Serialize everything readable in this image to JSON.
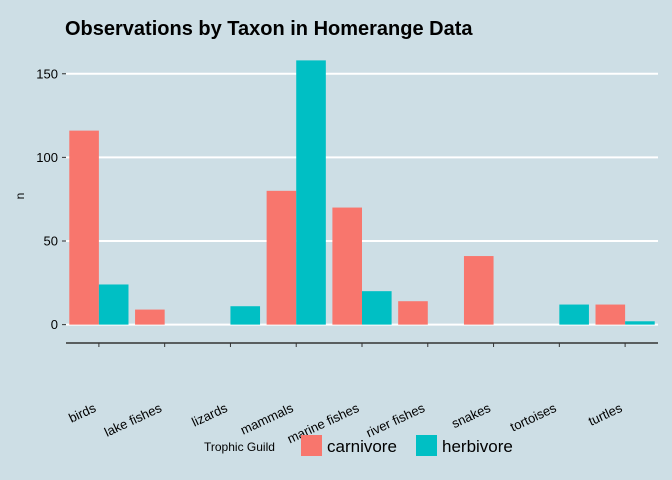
{
  "chart_data": {
    "type": "bar",
    "title": "Observations by Taxon in Homerange Data",
    "xlabel": "Trophic Guild",
    "ylabel": "n",
    "categories": [
      "birds",
      "lake fishes",
      "lizards",
      "mammals",
      "marine fishes",
      "river fishes",
      "snakes",
      "tortoises",
      "turtles"
    ],
    "series": [
      {
        "name": "carnivore",
        "color": "#f8766d",
        "values": [
          116,
          9,
          null,
          80,
          70,
          14,
          41,
          null,
          12
        ]
      },
      {
        "name": "herbivore",
        "color": "#00bfc4",
        "values": [
          24,
          null,
          11,
          158,
          20,
          null,
          null,
          12,
          2
        ]
      }
    ],
    "ylim": [
      -8,
      166
    ],
    "yticks": [
      0,
      50,
      100,
      150
    ],
    "grid": true,
    "legend_position": "bottom"
  }
}
